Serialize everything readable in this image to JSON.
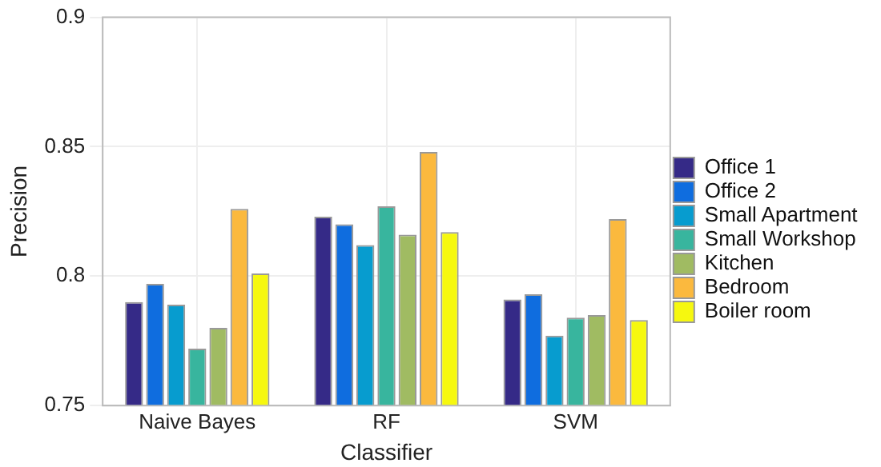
{
  "chart_data": {
    "type": "bar",
    "xlabel": "Classifier",
    "ylabel": "Precision",
    "categories": [
      "Naive Bayes",
      "RF",
      "SVM"
    ],
    "series": [
      {
        "name": "Office 1",
        "color": "#352a87",
        "values": [
          0.79,
          0.823,
          0.791
        ]
      },
      {
        "name": "Office 2",
        "color": "#0f6ddf",
        "values": [
          0.797,
          0.82,
          0.793
        ]
      },
      {
        "name": "Small Apartment",
        "color": "#079ccf",
        "values": [
          0.789,
          0.812,
          0.777
        ]
      },
      {
        "name": "Small Workshop",
        "color": "#38b59e",
        "values": [
          0.772,
          0.827,
          0.784
        ]
      },
      {
        "name": "Kitchen",
        "color": "#a0bb62",
        "values": [
          0.78,
          0.816,
          0.785
        ]
      },
      {
        "name": "Bedroom",
        "color": "#fbb93e",
        "values": [
          0.826,
          0.848,
          0.822
        ]
      },
      {
        "name": "Boiler room",
        "color": "#f6f80f",
        "values": [
          0.801,
          0.817,
          0.783
        ]
      }
    ],
    "ylim": [
      0.75,
      0.9
    ],
    "yticks": [
      0.75,
      0.8,
      0.85,
      0.9
    ],
    "grid": true,
    "legend": "right"
  }
}
